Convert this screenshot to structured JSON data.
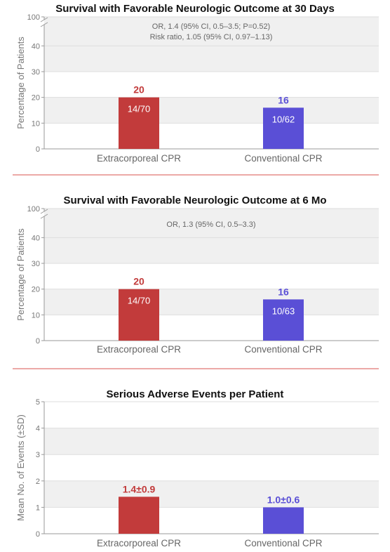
{
  "chart_data": [
    {
      "type": "bar",
      "title": "Survival with Favorable Neurologic Outcome at 30 Days",
      "ylabel": "Percentage of Patients",
      "ylim": [
        0,
        100
      ],
      "y_axis_break": [
        45,
        95
      ],
      "yticks": [
        "0",
        "10",
        "20",
        "30",
        "40",
        "100"
      ],
      "categories": [
        "Extracorporeal CPR",
        "Conventional CPR"
      ],
      "values": [
        20,
        16
      ],
      "value_labels": [
        "20",
        "16"
      ],
      "bar_labels": [
        "14/70",
        "10/62"
      ],
      "colors": [
        "#c23b3b",
        "#5a4fd6"
      ],
      "annotations": [
        "OR, 1.4 (95% CI, 0.5–3.5; P=0.52)",
        "Risk ratio, 1.05 (95% CI, 0.97–1.13)"
      ]
    },
    {
      "type": "bar",
      "title": "Survival with Favorable Neurologic Outcome at 6 Mo",
      "ylabel": "Percentage of Patients",
      "ylim": [
        0,
        100
      ],
      "y_axis_break": [
        45,
        95
      ],
      "yticks": [
        "0",
        "10",
        "20",
        "30",
        "40",
        "100"
      ],
      "categories": [
        "Extracorporeal CPR",
        "Conventional CPR"
      ],
      "values": [
        20,
        16
      ],
      "value_labels": [
        "20",
        "16"
      ],
      "bar_labels": [
        "14/70",
        "10/63"
      ],
      "colors": [
        "#c23b3b",
        "#5a4fd6"
      ],
      "annotations": [
        "OR, 1.3 (95% CI, 0.5–3.3)"
      ]
    },
    {
      "type": "bar",
      "title": "Serious Adverse Events per Patient",
      "ylabel": "Mean No. of Events (±SD)",
      "ylim": [
        0,
        5
      ],
      "yticks": [
        "0",
        "1",
        "2",
        "3",
        "4",
        "5"
      ],
      "categories": [
        "Extracorporeal CPR",
        "Conventional CPR"
      ],
      "values": [
        1.4,
        1.0
      ],
      "value_labels": [
        "1.4±0.9",
        "1.0±0.6"
      ],
      "bar_labels": [
        "",
        ""
      ],
      "colors": [
        "#c23b3b",
        "#5a4fd6"
      ],
      "annotations": []
    }
  ]
}
